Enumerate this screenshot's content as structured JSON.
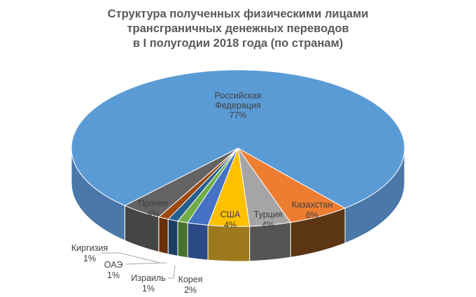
{
  "chart_data": {
    "type": "pie",
    "style": "3d",
    "title": [
      "Структура полученных физическими лицами",
      "трансграничных денежных переводов",
      "в I полугодии 2018 года (по странам)"
    ],
    "slices": [
      {
        "name": "Казахстан",
        "value": 6,
        "label": "6%",
        "color": "#ed7d31",
        "side": "#5c3614"
      },
      {
        "name": "Турция",
        "value": 4,
        "label": "4%",
        "color": "#a5a5a5",
        "side": "#555555"
      },
      {
        "name": "США",
        "value": 4,
        "label": "4%",
        "color": "#ffc000",
        "side": "#9c7a1c"
      },
      {
        "name": "Корея",
        "value": 2,
        "label": "2%",
        "color": "#4472c4",
        "side": "#2c4a85"
      },
      {
        "name": "Израиль",
        "value": 1,
        "label": "1%",
        "color": "#70ad47",
        "side": "#46722c"
      },
      {
        "name": "ОАЭ",
        "value": 1,
        "label": "1%",
        "color": "#255e91",
        "side": "#1b3f62"
      },
      {
        "name": "Киргизия",
        "value": 1,
        "label": "1%",
        "color": "#9e480e",
        "side": "#6a2e08"
      },
      {
        "name": "Прочие",
        "value": 4,
        "label": "4%",
        "color": "#636363",
        "side": "#454545"
      },
      {
        "name": "Российская Федерация",
        "value": 77,
        "label": "77%",
        "color": "#5b9bd5",
        "side": "#4a78a8"
      }
    ]
  }
}
